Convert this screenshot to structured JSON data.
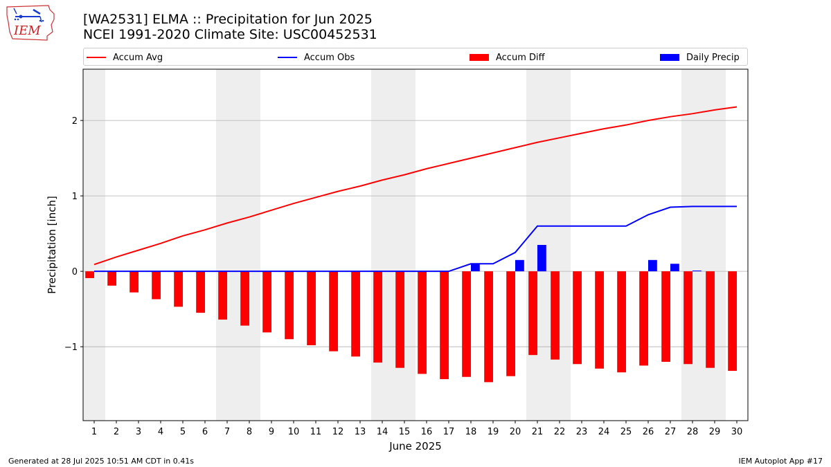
{
  "header": {
    "title_line1": "[WA2531] ELMA :: Precipitation for Jun 2025",
    "title_line2": "NCEI 1991-2020 Climate Site: USC00452531"
  },
  "logo": {
    "text": "IEM",
    "icon": "iowa-state-outline-icon"
  },
  "footer": {
    "generated": "Generated at 28 Jul 2025 10:51 AM CDT in 0.41s",
    "app": "IEM Autoplot App #17"
  },
  "colors": {
    "avg": "#ff0000",
    "obs": "#0000ff",
    "diff": "#ff0000",
    "daily": "#0000ff",
    "weekend": "#eeeeee",
    "grid": "#b0b0b0"
  },
  "chart_data": {
    "type": "bar",
    "xlabel": "June 2025",
    "ylabel": "Precipitation [inch]",
    "x": [
      1,
      2,
      3,
      4,
      5,
      6,
      7,
      8,
      9,
      10,
      11,
      12,
      13,
      14,
      15,
      16,
      17,
      18,
      19,
      20,
      21,
      22,
      23,
      24,
      25,
      26,
      27,
      28,
      29,
      30
    ],
    "xlim": [
      0.5,
      30.5
    ],
    "ylim": [
      -1.98,
      2.68
    ],
    "yticks": [
      -1,
      0,
      1,
      2
    ],
    "ytick_labels": [
      "−1",
      "0",
      "1",
      "2"
    ],
    "grid": "horizontal",
    "legend": "top",
    "weekend_days": [
      1,
      7,
      8,
      14,
      15,
      21,
      22,
      28,
      29
    ],
    "series": [
      {
        "name": "Accum Avg",
        "kind": "line",
        "color": "#ff0000",
        "values": [
          0.09,
          0.19,
          0.28,
          0.37,
          0.47,
          0.55,
          0.64,
          0.72,
          0.81,
          0.9,
          0.98,
          1.06,
          1.13,
          1.21,
          1.28,
          1.36,
          1.43,
          1.5,
          1.57,
          1.64,
          1.71,
          1.77,
          1.83,
          1.89,
          1.94,
          2.0,
          2.05,
          2.09,
          2.14,
          2.18
        ]
      },
      {
        "name": "Accum Obs",
        "kind": "line",
        "color": "#0000ff",
        "values": [
          0,
          0,
          0,
          0,
          0,
          0,
          0,
          0,
          0,
          0,
          0,
          0,
          0,
          0,
          0,
          0,
          0,
          0.1,
          0.1,
          0.25,
          0.6,
          0.6,
          0.6,
          0.6,
          0.6,
          0.75,
          0.85,
          0.86,
          0.86,
          0.86
        ]
      },
      {
        "name": "Accum Diff",
        "kind": "bar",
        "color": "#ff0000",
        "values": [
          -0.09,
          -0.19,
          -0.28,
          -0.37,
          -0.47,
          -0.55,
          -0.64,
          -0.72,
          -0.81,
          -0.9,
          -0.98,
          -1.06,
          -1.13,
          -1.21,
          -1.28,
          -1.36,
          -1.43,
          -1.4,
          -1.47,
          -1.39,
          -1.11,
          -1.17,
          -1.23,
          -1.29,
          -1.34,
          -1.25,
          -1.2,
          -1.23,
          -1.28,
          -1.32
        ]
      },
      {
        "name": "Daily Precip",
        "kind": "bar",
        "color": "#0000ff",
        "values": [
          0,
          0,
          0,
          0,
          0,
          0,
          0,
          0,
          0,
          0,
          0,
          0,
          0,
          0,
          0,
          0,
          0,
          0.1,
          0,
          0.15,
          0.35,
          0,
          0,
          0,
          0,
          0.15,
          0.1,
          0.01,
          0,
          0
        ]
      }
    ]
  }
}
